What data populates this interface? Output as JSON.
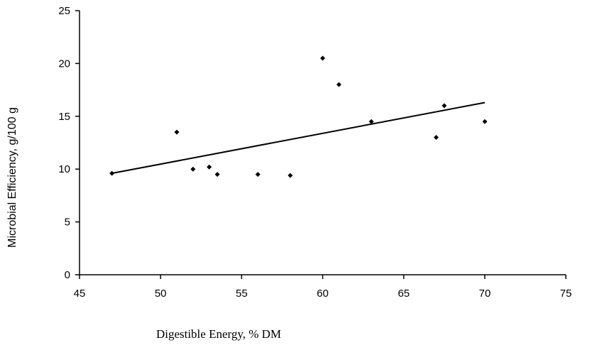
{
  "chart_data": {
    "type": "scatter",
    "xlabel": "Digestible Energy, % DM",
    "ylabel": "Microbial Efficiency, g/100 g",
    "xlim": [
      45,
      75
    ],
    "ylim": [
      0,
      25
    ],
    "xticks": [
      45,
      50,
      55,
      60,
      65,
      70,
      75
    ],
    "yticks": [
      0,
      5,
      10,
      15,
      20,
      25
    ],
    "grid": false,
    "marker_color": "#000000",
    "points": [
      {
        "x": 47,
        "y": 9.6
      },
      {
        "x": 51,
        "y": 13.5
      },
      {
        "x": 52,
        "y": 10.0
      },
      {
        "x": 53,
        "y": 10.2
      },
      {
        "x": 53.5,
        "y": 9.5
      },
      {
        "x": 56,
        "y": 9.5
      },
      {
        "x": 58,
        "y": 9.4
      },
      {
        "x": 60,
        "y": 20.5
      },
      {
        "x": 61,
        "y": 18.0
      },
      {
        "x": 63,
        "y": 14.5
      },
      {
        "x": 67,
        "y": 13.0
      },
      {
        "x": 67.5,
        "y": 16.0
      },
      {
        "x": 70,
        "y": 14.5
      }
    ],
    "trendline": {
      "type": "linear",
      "x": [
        47,
        70
      ],
      "y": [
        9.6,
        16.3
      ]
    }
  }
}
